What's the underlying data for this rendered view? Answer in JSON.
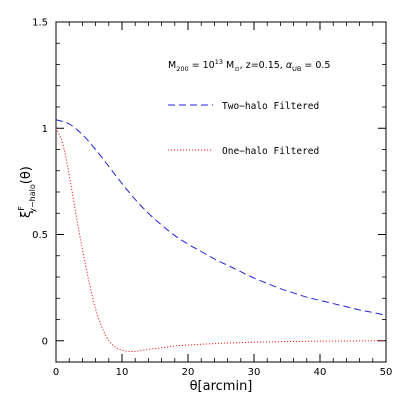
{
  "chart_data": {
    "type": "line",
    "xlim": [
      0,
      50
    ],
    "ylim": [
      -0.1,
      1.5
    ],
    "x_ticks_major": [
      0,
      10,
      20,
      30,
      40,
      50
    ],
    "y_ticks_major": [
      0,
      0.5,
      1,
      1.5
    ],
    "x_tick_labels": [
      "0",
      "10",
      "20",
      "30",
      "40",
      "50"
    ],
    "y_tick_labels": [
      "0",
      "0.5",
      "1",
      "1.5"
    ],
    "x_minor_step": 2,
    "y_minor_step": 0.1,
    "xlabel": "θ[arcmin]",
    "ylabel": {
      "base": "ξ",
      "superscript": "F",
      "subscript": "y−halo",
      "suffix": "(θ)"
    },
    "annotation": {
      "M": "M",
      "M_sub": "200",
      "eq1": " = 10",
      "exp": "13",
      "units": " M",
      "units_sub": "⊙",
      "z": ", z=0.15, ",
      "alpha": "α",
      "alpha_sub": "UB",
      "eq2": " = 0.5"
    },
    "legend_position": "upper-right",
    "grid": false,
    "series": [
      {
        "name": "Two−halo Filtered",
        "style": "dashed",
        "color": "#2222dd",
        "x": [
          0,
          2,
          4,
          6,
          8,
          10,
          12,
          14,
          16,
          18,
          20,
          22,
          24,
          26,
          28,
          30,
          32,
          34,
          36,
          38,
          40,
          42,
          44,
          46,
          48,
          50
        ],
        "y": [
          1.04,
          1.02,
          0.97,
          0.9,
          0.82,
          0.74,
          0.665,
          0.6,
          0.545,
          0.495,
          0.455,
          0.42,
          0.385,
          0.355,
          0.325,
          0.295,
          0.27,
          0.245,
          0.225,
          0.205,
          0.19,
          0.175,
          0.16,
          0.145,
          0.133,
          0.12
        ]
      },
      {
        "name": "One−halo Filtered",
        "style": "dotted",
        "color": "#ee2222",
        "x": [
          0,
          1,
          2,
          3,
          4,
          5,
          6,
          7,
          8,
          9,
          10,
          11,
          12,
          13,
          14,
          16,
          18,
          20,
          25,
          30,
          35,
          40,
          45,
          50
        ],
        "y": [
          1.0,
          0.93,
          0.78,
          0.6,
          0.43,
          0.28,
          0.15,
          0.06,
          0.0,
          -0.03,
          -0.045,
          -0.05,
          -0.05,
          -0.045,
          -0.04,
          -0.033,
          -0.025,
          -0.02,
          -0.012,
          -0.007,
          -0.004,
          -0.002,
          -0.001,
          0.0
        ]
      }
    ]
  }
}
